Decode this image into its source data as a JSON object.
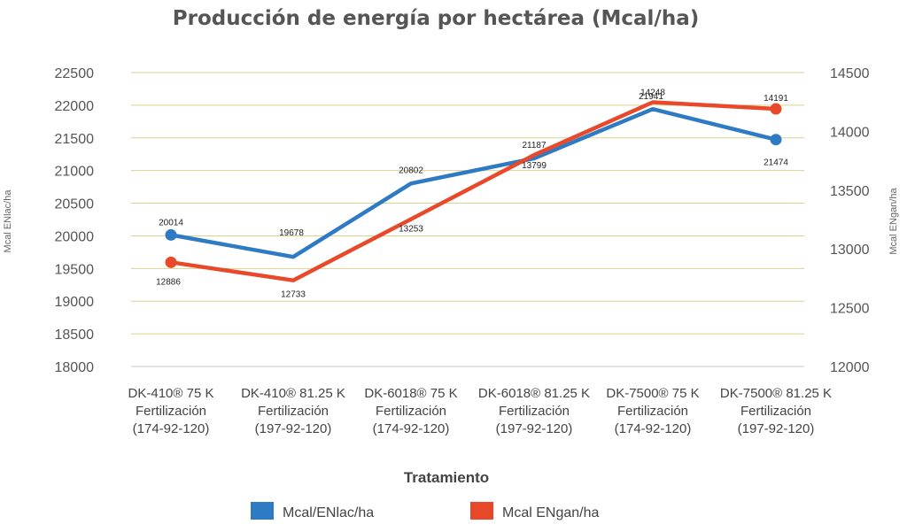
{
  "chart_data": {
    "type": "line",
    "title": "Producción de energía por hectárea (Mcal/ha)",
    "xlabel": "Tratamiento",
    "ylabel_left": "Mcal ENlac/ha",
    "ylabel_right": "Mcal ENgan/ha",
    "categories": [
      [
        "DK-410® 75 K",
        "Fertilización",
        "(174-92-120)"
      ],
      [
        "DK-410® 81.25 K",
        "Fertilización",
        "(197-92-120)"
      ],
      [
        "DK-6018® 75 K",
        "Fertilización",
        "(174-92-120)"
      ],
      [
        "DK-6018® 81.25 K",
        "Fertilización",
        "(197-92-120)"
      ],
      [
        "DK-7500® 75 K",
        "Fertilización",
        "(174-92-120)"
      ],
      [
        "DK-7500® 81.25 K",
        "Fertilización",
        "(197-92-120)"
      ]
    ],
    "y_left": {
      "min": 18000,
      "max": 22500,
      "ticks": [
        18000,
        18500,
        19000,
        19500,
        20000,
        20500,
        21000,
        21500,
        22000,
        22500
      ]
    },
    "y_right": {
      "min": 12000,
      "max": 14500,
      "ticks": [
        12000,
        12500,
        13000,
        13500,
        14000,
        14500
      ]
    },
    "grid": true,
    "legend_position": "bottom",
    "series": [
      {
        "name": "Mcal/ENlac/ha",
        "axis": "left",
        "color": "#2e7bc4",
        "values": [
          20014,
          19678,
          20802,
          21187,
          21941,
          21474
        ],
        "labels": [
          "20014",
          "19678",
          "20802",
          "21187",
          "21941",
          "21474"
        ],
        "markers": [
          true,
          false,
          false,
          false,
          false,
          true
        ]
      },
      {
        "name": "Mcal ENgan/ha",
        "axis": "right",
        "color": "#e8492a",
        "values": [
          12886,
          12733,
          13253,
          13799,
          14248,
          14191
        ],
        "labels": [
          "12886",
          "12733",
          "13253",
          "13799",
          "14248",
          "14191"
        ],
        "markers": [
          true,
          false,
          false,
          false,
          false,
          true
        ]
      }
    ]
  }
}
